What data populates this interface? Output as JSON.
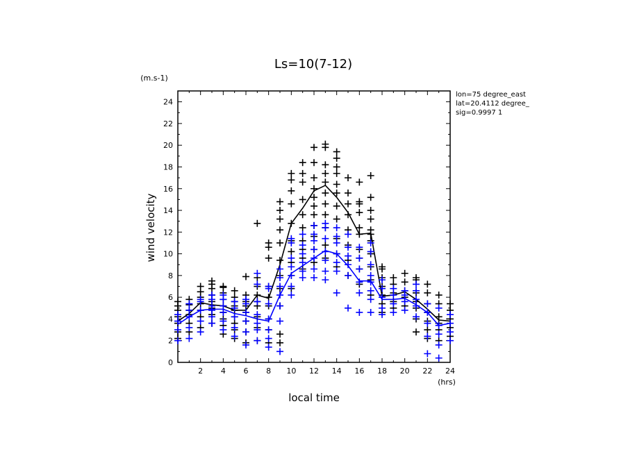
{
  "chart_data": {
    "type": "scatter",
    "title": "Ls=10(7-12)",
    "xlabel": "local time",
    "ylabel": "wind velocity",
    "x_unit": "(hrs)",
    "y_unit": "(m.s-1)",
    "xlim": [
      0,
      24
    ],
    "ylim": [
      0,
      25
    ],
    "xticks": [
      2,
      4,
      6,
      8,
      10,
      12,
      14,
      16,
      18,
      20,
      22,
      24
    ],
    "yticks": [
      0,
      2,
      4,
      6,
      8,
      10,
      12,
      14,
      16,
      18,
      20,
      22,
      24
    ],
    "grid": false,
    "annotations": [
      "lon=75 degree_east",
      "lat=20.4112 degree_",
      "sig=0.9997 1"
    ],
    "colors": {
      "series_a": "#000000",
      "series_b": "#0000ff"
    },
    "series": [
      {
        "color": "#000000",
        "mean_x": [
          0,
          1,
          2,
          3,
          4,
          5,
          6,
          7,
          8,
          9,
          10,
          11,
          12,
          13,
          14,
          15,
          16,
          17,
          18,
          19,
          20,
          21,
          22,
          23,
          24
        ],
        "mean_y": [
          3.8,
          4.5,
          5.5,
          5.3,
          5.2,
          4.8,
          4.8,
          6.2,
          5.9,
          9.0,
          12.8,
          14.2,
          15.8,
          16.3,
          15.2,
          13.8,
          11.8,
          11.9,
          6.1,
          6.2,
          6.5,
          5.8,
          4.9,
          3.9,
          3.8
        ],
        "points": [
          [
            0,
            [
              2.2,
              2.8,
              3.6,
              4.2,
              4.8,
              5.2,
              5.6
            ]
          ],
          [
            1,
            [
              2.8,
              3.6,
              4.4,
              4.8,
              5.3,
              5.8
            ]
          ],
          [
            2,
            [
              3.2,
              4.2,
              4.8,
              5.4,
              6.0,
              6.5,
              7.0
            ]
          ],
          [
            3,
            [
              3.6,
              4.4,
              5.0,
              5.6,
              6.2,
              6.8,
              7.2,
              7.5
            ]
          ],
          [
            4,
            [
              2.6,
              3.4,
              4.0,
              4.6,
              5.2,
              5.8,
              6.4,
              6.9,
              7.0
            ]
          ],
          [
            5,
            [
              2.2,
              3.0,
              3.6,
              4.2,
              4.8,
              5.2,
              5.6,
              6.0,
              6.6
            ]
          ],
          [
            6,
            [
              1.8,
              2.8,
              3.8,
              4.6,
              5.2,
              5.6,
              6.2,
              7.9
            ]
          ],
          [
            7,
            [
              2.0,
              3.2,
              4.2,
              5.2,
              5.6,
              6.2,
              7.0,
              7.8,
              12.8
            ]
          ],
          [
            8,
            [
              1.8,
              3.0,
              4.0,
              5.2,
              6.0,
              7.0,
              9.6,
              10.6,
              11.0
            ]
          ],
          [
            9,
            [
              1.8,
              2.6,
              5.2,
              6.8,
              8.0,
              9.4,
              11.0,
              12.2,
              13.2,
              14.0,
              14.8
            ]
          ],
          [
            10,
            [
              6.8,
              8.0,
              9.2,
              10.2,
              11.2,
              12.8,
              14.6,
              15.8,
              16.8,
              17.4
            ]
          ],
          [
            11,
            [
              8.6,
              9.6,
              10.4,
              11.2,
              12.4,
              13.6,
              15.0,
              16.6,
              17.4,
              18.4
            ]
          ],
          [
            12,
            [
              9.2,
              10.4,
              11.6,
              12.6,
              13.6,
              14.4,
              15.2,
              16.0,
              17.0,
              18.4,
              19.8
            ]
          ],
          [
            13,
            [
              9.6,
              10.8,
              12.4,
              13.6,
              14.6,
              15.6,
              16.6,
              17.4,
              18.2,
              19.8,
              20.1
            ]
          ],
          [
            14,
            [
              8.8,
              10.0,
              11.4,
              13.2,
              14.4,
              15.6,
              16.4,
              17.4,
              18.0,
              18.8,
              19.4
            ]
          ],
          [
            15,
            [
              8.0,
              9.4,
              10.8,
              12.2,
              13.6,
              14.6,
              15.6,
              17.0
            ]
          ],
          [
            16,
            [
              7.2,
              8.6,
              9.6,
              10.4,
              11.8,
              12.4,
              13.8,
              14.6,
              14.8,
              16.6
            ]
          ],
          [
            17,
            [
              6.2,
              7.6,
              8.8,
              10.0,
              11.2,
              11.8,
              12.2,
              13.2,
              14.0,
              15.2,
              17.2
            ]
          ],
          [
            18,
            [
              4.6,
              5.4,
              6.2,
              7.0,
              7.8,
              8.6,
              8.8
            ]
          ],
          [
            19,
            [
              5.0,
              5.6,
              6.4,
              7.2,
              7.8
            ]
          ],
          [
            20,
            [
              5.2,
              6.0,
              6.6,
              7.4,
              8.2
            ]
          ],
          [
            21,
            [
              2.8,
              4.0,
              5.0,
              5.6,
              6.4,
              7.6,
              7.8
            ]
          ],
          [
            22,
            [
              2.2,
              3.0,
              3.8,
              4.6,
              5.4,
              6.4,
              7.2
            ]
          ],
          [
            23,
            [
              2.0,
              3.0,
              3.6,
              4.2,
              5.4,
              6.2
            ]
          ],
          [
            24,
            [
              2.4,
              3.2,
              4.0,
              4.8,
              5.4
            ]
          ]
        ]
      },
      {
        "color": "#0000ff",
        "mean_x": [
          0,
          1,
          2,
          3,
          4,
          5,
          6,
          7,
          8,
          9,
          10,
          11,
          12,
          13,
          14,
          15,
          16,
          17,
          18,
          19,
          20,
          21,
          22,
          23,
          24
        ],
        "mean_y": [
          3.5,
          4.2,
          4.8,
          4.9,
          4.9,
          4.5,
          4.3,
          4.0,
          3.8,
          6.2,
          8.2,
          8.9,
          9.6,
          10.3,
          10.0,
          8.9,
          7.5,
          7.5,
          5.8,
          5.8,
          5.9,
          5.3,
          4.6,
          3.4,
          3.6
        ],
        "points": [
          [
            0,
            [
              2.0,
              3.0,
              3.8,
              4.4
            ]
          ],
          [
            1,
            [
              2.2,
              3.2,
              4.2,
              4.8,
              5.4
            ]
          ],
          [
            2,
            [
              2.8,
              3.8,
              4.8,
              5.6,
              5.8
            ]
          ],
          [
            3,
            [
              3.6,
              4.2,
              4.8,
              5.2,
              5.8,
              6.2
            ]
          ],
          [
            4,
            [
              3.0,
              3.8,
              4.6,
              5.2,
              5.8,
              6.2
            ]
          ],
          [
            5,
            [
              2.4,
              3.2,
              4.2,
              5.0,
              5.6
            ]
          ],
          [
            6,
            [
              1.6,
              2.8,
              3.8,
              4.6,
              5.4,
              5.8
            ]
          ],
          [
            7,
            [
              2.0,
              3.0,
              3.6,
              4.4,
              5.6,
              7.2,
              8.2
            ]
          ],
          [
            8,
            [
              1.4,
              2.2,
              3.0,
              4.0,
              5.4,
              6.8,
              7.0
            ]
          ],
          [
            9,
            [
              1.0,
              3.8,
              5.2,
              6.2,
              7.0,
              7.8,
              8.6
            ]
          ],
          [
            10,
            [
              6.2,
              7.0,
              8.0,
              8.8,
              9.6,
              11.0,
              11.4
            ]
          ],
          [
            11,
            [
              7.8,
              8.4,
              9.2,
              10.0,
              10.8,
              11.8
            ]
          ],
          [
            12,
            [
              7.8,
              8.6,
              9.6,
              10.4,
              11.2,
              11.8,
              12.6
            ]
          ],
          [
            13,
            [
              7.6,
              8.4,
              9.4,
              10.2,
              11.4,
              12.4,
              12.8
            ]
          ],
          [
            14,
            [
              6.4,
              8.4,
              9.2,
              10.0,
              11.0,
              11.6,
              12.4
            ]
          ],
          [
            15,
            [
              5.0,
              8.0,
              9.0,
              9.8,
              10.6,
              11.8
            ]
          ],
          [
            16,
            [
              4.6,
              6.4,
              7.4,
              8.6,
              9.6,
              10.6
            ]
          ],
          [
            17,
            [
              4.6,
              5.8,
              6.6,
              7.4,
              8.0,
              9.0,
              10.2,
              11.0
            ]
          ],
          [
            18,
            [
              4.4,
              5.0,
              6.0,
              6.8,
              7.6
            ]
          ],
          [
            19,
            [
              4.6,
              5.4,
              6.2,
              6.8
            ]
          ],
          [
            20,
            [
              4.8,
              5.6,
              6.2,
              6.6
            ]
          ],
          [
            21,
            [
              4.2,
              5.2,
              5.8,
              6.6,
              7.2
            ]
          ],
          [
            22,
            [
              0.8,
              2.4,
              3.6,
              4.6,
              5.4
            ]
          ],
          [
            23,
            [
              0.4,
              1.6,
              2.6,
              3.4,
              5.0
            ]
          ],
          [
            24,
            [
              2.0,
              2.8,
              3.6,
              4.4
            ]
          ]
        ]
      }
    ]
  }
}
